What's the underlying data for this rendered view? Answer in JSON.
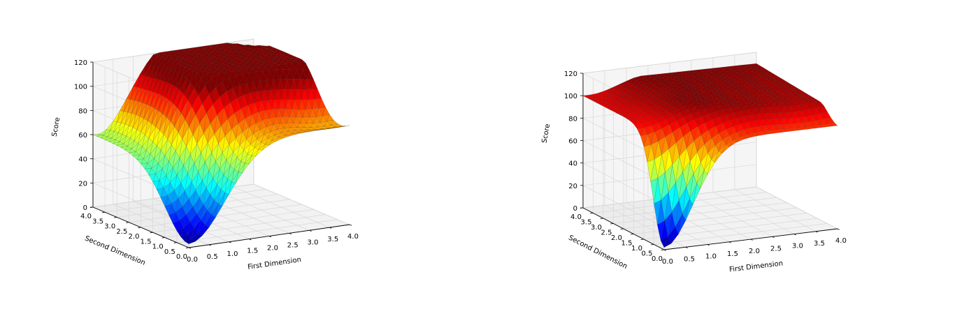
{
  "chart_data": [
    {
      "type": "surface3d",
      "title": "",
      "xlabel": "First Dimension",
      "ylabel": "Second Dimension",
      "zlabel": "Score",
      "xlim": [
        0.0,
        4.0
      ],
      "ylim": [
        0.0,
        4.0
      ],
      "zlim": [
        0,
        120
      ],
      "xticks": [
        "0.0",
        "0.5",
        "1.0",
        "1.5",
        "2.0",
        "2.5",
        "3.0",
        "3.5",
        "4.0"
      ],
      "yticks": [
        "0.0",
        "0.5",
        "1.0",
        "1.5",
        "2.0",
        "2.5",
        "3.0",
        "3.5",
        "4.0"
      ],
      "zticks": [
        "0",
        "20",
        "40",
        "60",
        "80",
        "100",
        "120"
      ],
      "colormap": "jet",
      "grid": true,
      "key_points": [
        {
          "x": 0.0,
          "y": 0.0,
          "z": 3
        },
        {
          "x": 0.0,
          "y": 4.0,
          "z": 60
        },
        {
          "x": 4.0,
          "y": 0.0,
          "z": 82
        },
        {
          "x": 4.0,
          "y": 4.0,
          "z": 112
        }
      ]
    },
    {
      "type": "surface3d",
      "title": "",
      "xlabel": "First Dimension",
      "ylabel": "Second Dimension",
      "zlabel": "Score",
      "xlim": [
        0.0,
        4.0
      ],
      "ylim": [
        0.0,
        4.0
      ],
      "zlim": [
        0,
        120
      ],
      "xticks": [
        "0.0",
        "0.5",
        "1.0",
        "1.5",
        "2.0",
        "2.5",
        "3.0",
        "3.5",
        "4.0"
      ],
      "yticks": [
        "0.0",
        "0.5",
        "1.0",
        "1.5",
        "2.0",
        "2.5",
        "3.0",
        "3.5",
        "4.0"
      ],
      "zticks": [
        "0",
        "20",
        "40",
        "60",
        "80",
        "100",
        "120"
      ],
      "colormap": "jet",
      "grid": true,
      "key_points": [
        {
          "x": 0.0,
          "y": 0.0,
          "z": 2
        },
        {
          "x": 0.0,
          "y": 4.0,
          "z": 100
        },
        {
          "x": 4.0,
          "y": 0.0,
          "z": 92
        },
        {
          "x": 4.0,
          "y": 4.0,
          "z": 110
        }
      ]
    }
  ]
}
